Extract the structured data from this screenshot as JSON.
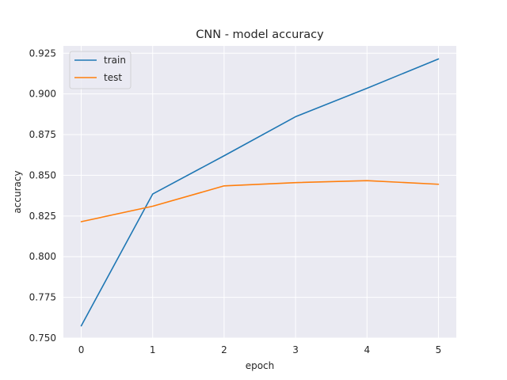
{
  "chart_data": {
    "type": "line",
    "title": "CNN - model accuracy",
    "xlabel": "epoch",
    "ylabel": "accuracy",
    "x": [
      0,
      1,
      2,
      3,
      4,
      5
    ],
    "xticks": [
      "0",
      "1",
      "2",
      "3",
      "4",
      "5"
    ],
    "yticks": [
      "0.750",
      "0.775",
      "0.800",
      "0.825",
      "0.850",
      "0.875",
      "0.900",
      "0.925"
    ],
    "yticks_values": [
      0.75,
      0.775,
      0.8,
      0.825,
      0.85,
      0.875,
      0.9,
      0.925
    ],
    "xlim": [
      -0.25,
      5.25
    ],
    "ylim": [
      0.75,
      0.9295
    ],
    "grid": true,
    "legend_position": "upper-left",
    "series": [
      {
        "name": "train",
        "color": "#1f77b4",
        "values": [
          0.7575,
          0.8385,
          0.862,
          0.886,
          0.9035,
          0.9215
        ]
      },
      {
        "name": "test",
        "color": "#ff7f0e",
        "values": [
          0.8215,
          0.831,
          0.8435,
          0.8455,
          0.8467,
          0.8445
        ]
      }
    ]
  }
}
